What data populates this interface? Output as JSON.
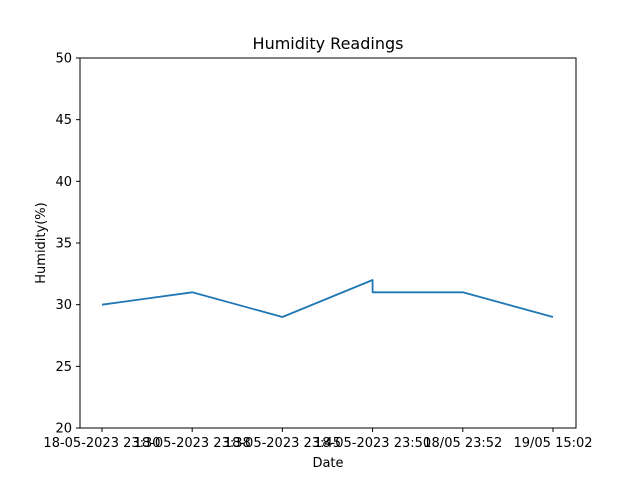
{
  "chart_data": {
    "type": "line",
    "title": "Humidity Readings",
    "xlabel": "Date",
    "ylabel": "Humidity(%)",
    "ylim": [
      20,
      50
    ],
    "yticks": [
      20,
      25,
      30,
      35,
      40,
      45,
      50
    ],
    "grid": false,
    "legend": "none",
    "categories": [
      "18-05-2023 23:30",
      "18-05-2023 23:38",
      "18-05-2023 23:45",
      "18-05-2023 23:50",
      "18/05 23:52",
      "19/05 15:02"
    ],
    "series": [
      {
        "color": "#1f77b4",
        "points": [
          {
            "x": "18-05-2023 23:30",
            "y": 30
          },
          {
            "x": "18-05-2023 23:38",
            "y": 31
          },
          {
            "x": "18-05-2023 23:45",
            "y": 29
          },
          {
            "x": "18-05-2023 23:50",
            "y": 32
          },
          {
            "x": "18-05-2023 23:50",
            "y": 31
          },
          {
            "x": "18/05 23:52",
            "y": 31
          },
          {
            "x": "19/05 15:02",
            "y": 29
          }
        ]
      }
    ]
  }
}
